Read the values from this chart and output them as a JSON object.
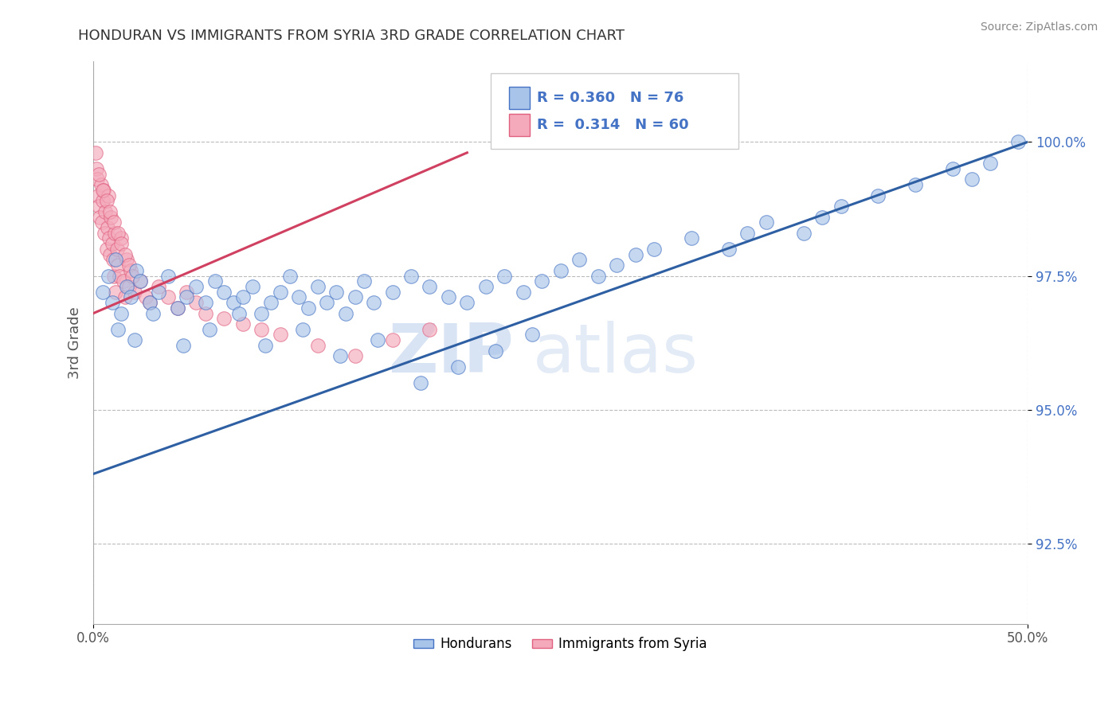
{
  "title": "HONDURAN VS IMMIGRANTS FROM SYRIA 3RD GRADE CORRELATION CHART",
  "source_text": "Source: ZipAtlas.com",
  "ylabel": "3rd Grade",
  "xlim": [
    0.0,
    50.0
  ],
  "ylim": [
    91.0,
    101.5
  ],
  "ytick_values": [
    92.5,
    95.0,
    97.5,
    100.0
  ],
  "ytick_labels": [
    "92.5%",
    "95.0%",
    "97.5%",
    "100.0%"
  ],
  "xtick_values": [
    0.0,
    50.0
  ],
  "xtick_labels": [
    "0.0%",
    "50.0%"
  ],
  "blue_fill": "#A8C4E8",
  "blue_edge": "#4472C4",
  "pink_fill": "#F4AABB",
  "pink_edge": "#E06080",
  "blue_line_color": "#2E5FA3",
  "pink_line_color": "#D04060",
  "legend_blue_R": "0.360",
  "legend_blue_N": "76",
  "legend_pink_R": "0.314",
  "legend_pink_N": "60",
  "legend_blue_label": "Hondurans",
  "legend_pink_label": "Immigrants from Syria",
  "watermark_zip": "ZIP",
  "watermark_atlas": "atlas",
  "blue_scatter_x": [
    0.5,
    0.8,
    1.0,
    1.2,
    1.5,
    1.8,
    2.0,
    2.3,
    2.5,
    3.0,
    3.5,
    4.0,
    4.5,
    5.0,
    5.5,
    6.0,
    6.5,
    7.0,
    7.5,
    8.0,
    8.5,
    9.0,
    9.5,
    10.0,
    10.5,
    11.0,
    11.5,
    12.0,
    12.5,
    13.0,
    13.5,
    14.0,
    14.5,
    15.0,
    16.0,
    17.0,
    18.0,
    19.0,
    20.0,
    21.0,
    22.0,
    23.0,
    24.0,
    25.0,
    26.0,
    27.0,
    28.0,
    29.0,
    30.0,
    32.0,
    34.0,
    35.0,
    36.0,
    38.0,
    39.0,
    40.0,
    42.0,
    44.0,
    46.0,
    47.0,
    48.0,
    49.5,
    1.3,
    2.2,
    3.2,
    4.8,
    6.2,
    7.8,
    9.2,
    11.2,
    13.2,
    15.2,
    17.5,
    19.5,
    21.5,
    23.5
  ],
  "blue_scatter_y": [
    97.2,
    97.5,
    97.0,
    97.8,
    96.8,
    97.3,
    97.1,
    97.6,
    97.4,
    97.0,
    97.2,
    97.5,
    96.9,
    97.1,
    97.3,
    97.0,
    97.4,
    97.2,
    97.0,
    97.1,
    97.3,
    96.8,
    97.0,
    97.2,
    97.5,
    97.1,
    96.9,
    97.3,
    97.0,
    97.2,
    96.8,
    97.1,
    97.4,
    97.0,
    97.2,
    97.5,
    97.3,
    97.1,
    97.0,
    97.3,
    97.5,
    97.2,
    97.4,
    97.6,
    97.8,
    97.5,
    97.7,
    97.9,
    98.0,
    98.2,
    98.0,
    98.3,
    98.5,
    98.3,
    98.6,
    98.8,
    99.0,
    99.2,
    99.5,
    99.3,
    99.6,
    100.0,
    96.5,
    96.3,
    96.8,
    96.2,
    96.5,
    96.8,
    96.2,
    96.5,
    96.0,
    96.3,
    95.5,
    95.8,
    96.1,
    96.4
  ],
  "pink_scatter_x": [
    0.1,
    0.15,
    0.2,
    0.25,
    0.3,
    0.35,
    0.4,
    0.45,
    0.5,
    0.55,
    0.6,
    0.65,
    0.7,
    0.75,
    0.8,
    0.85,
    0.9,
    0.95,
    1.0,
    1.05,
    1.1,
    1.15,
    1.2,
    1.25,
    1.3,
    1.4,
    1.5,
    1.6,
    1.7,
    1.8,
    1.9,
    2.0,
    2.2,
    2.5,
    2.8,
    3.0,
    3.5,
    4.0,
    4.5,
    5.0,
    5.5,
    6.0,
    7.0,
    8.0,
    9.0,
    10.0,
    12.0,
    14.0,
    16.0,
    18.0,
    0.3,
    0.5,
    0.7,
    0.9,
    1.1,
    1.3,
    1.5,
    1.7,
    1.9,
    2.1
  ],
  "pink_scatter_y": [
    99.8,
    99.5,
    99.3,
    99.0,
    98.8,
    98.6,
    99.2,
    98.5,
    98.9,
    99.1,
    98.3,
    98.7,
    98.0,
    98.4,
    99.0,
    98.2,
    97.9,
    98.6,
    98.1,
    97.8,
    97.5,
    98.3,
    97.2,
    98.0,
    97.7,
    97.5,
    98.2,
    97.4,
    97.1,
    97.8,
    97.3,
    97.6,
    97.2,
    97.4,
    97.1,
    97.0,
    97.3,
    97.1,
    96.9,
    97.2,
    97.0,
    96.8,
    96.7,
    96.6,
    96.5,
    96.4,
    96.2,
    96.0,
    96.3,
    96.5,
    99.4,
    99.1,
    98.9,
    98.7,
    98.5,
    98.3,
    98.1,
    97.9,
    97.7,
    97.5
  ],
  "blue_line_x": [
    0.0,
    50.0
  ],
  "blue_line_y": [
    93.8,
    100.0
  ],
  "pink_line_x": [
    0.0,
    20.0
  ],
  "pink_line_y": [
    96.8,
    99.8
  ]
}
